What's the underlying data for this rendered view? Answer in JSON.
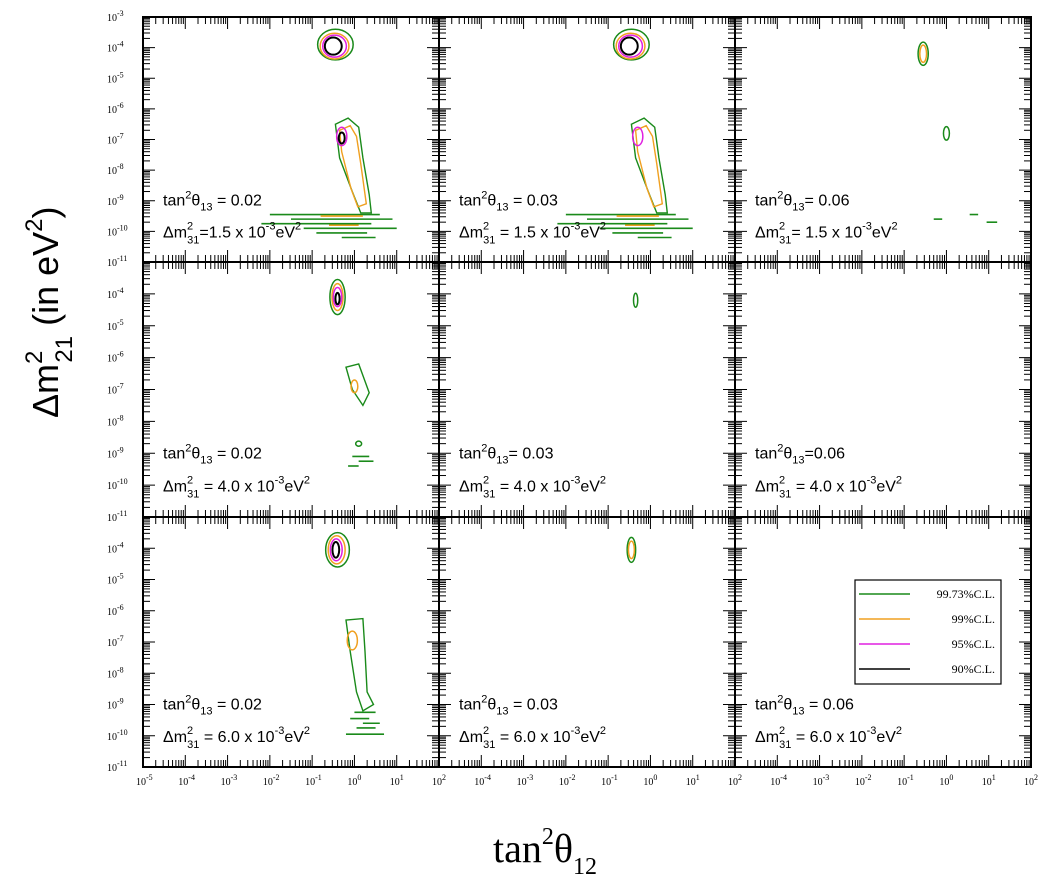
{
  "chart_data": {
    "type": "contour",
    "layout": "3x3 grid of panels sharing axes",
    "x_axis": {
      "title_base": "tan",
      "title_sup": "2",
      "title_symbol": "θ",
      "title_sub": "12",
      "scale": "log",
      "range": [
        1e-05,
        100
      ],
      "ticks": [
        {
          "b": "10",
          "e": "-5"
        },
        {
          "b": "10",
          "e": "-4"
        },
        {
          "b": "10",
          "e": "-3"
        },
        {
          "b": "10",
          "e": "-2"
        },
        {
          "b": "10",
          "e": "-1"
        },
        {
          "b": "10",
          "e": "0"
        },
        {
          "b": "10",
          "e": "1"
        },
        {
          "b": "10",
          "e": "2"
        }
      ]
    },
    "y_axis": {
      "title_prefix": "Δm",
      "title_sup": "2",
      "title_sub": "21",
      "title_suffix": " (in eV",
      "title_suffix_sup": "2",
      "title_close": ")",
      "scale": "log",
      "range": [
        1e-11,
        0.001
      ],
      "ticks": [
        {
          "b": "10",
          "e": "-3"
        },
        {
          "b": "10",
          "e": "-4"
        },
        {
          "b": "10",
          "e": "-5"
        },
        {
          "b": "10",
          "e": "-6"
        },
        {
          "b": "10",
          "e": "-7"
        },
        {
          "b": "10",
          "e": "-8"
        },
        {
          "b": "10",
          "e": "-9"
        },
        {
          "b": "10",
          "e": "-10"
        },
        {
          "b": "10",
          "e": "-11"
        }
      ]
    },
    "legend": {
      "placement": "bottom-right panel, right side",
      "entries": [
        {
          "label": "99.73%C.L.",
          "color": "#1a8a1a"
        },
        {
          "label": "99%C.L.",
          "color": "#f0a020"
        },
        {
          "label": "95%C.L.",
          "color": "#e020e0"
        },
        {
          "label": "90%C.L.",
          "color": "#000000"
        }
      ]
    },
    "series_colors": {
      "cl9973": "#1a8a1a",
      "cl99": "#f0a020",
      "cl95": "#e020e0",
      "cl90": "#000000"
    },
    "panels": [
      {
        "row": 0,
        "col": 0,
        "label1": "tan",
        "label1_sup": "2",
        "label1_sym": "θ",
        "label1_sub": "13",
        "label1_val": " = 0.02",
        "label2": "Δm",
        "label2_sup": "2",
        "label2_sub": "31",
        "label2_val": "=1.5 x 10",
        "label2_exp": "-3",
        "label2_unit": "eV",
        "label2_unit_sup": "2",
        "contours": "large"
      },
      {
        "row": 0,
        "col": 1,
        "label1": "tan",
        "label1_sup": "2",
        "label1_sym": "θ",
        "label1_sub": "13",
        "label1_val": " = 0.03",
        "label2": "Δm",
        "label2_sup": "2",
        "label2_sub": "31",
        "label2_val": " = 1.5 x 10",
        "label2_exp": "-3",
        "label2_unit": "eV",
        "label2_unit_sup": "2",
        "contours": "large"
      },
      {
        "row": 0,
        "col": 2,
        "label1": "tan",
        "label1_sup": "2",
        "label1_sym": "θ",
        "label1_sub": "13",
        "label1_val": "= 0.06",
        "label2": "Δm",
        "label2_sup": "2",
        "label2_sub": "31",
        "label2_val": "= 1.5 x 10",
        "label2_exp": "-3",
        "label2_unit": "eV",
        "label2_unit_sup": "2",
        "contours": "small"
      },
      {
        "row": 1,
        "col": 0,
        "label1": "tan",
        "label1_sup": "2",
        "label1_sym": "θ",
        "label1_sub": "13",
        "label1_val": " = 0.02",
        "label2": "Δm",
        "label2_sup": "2",
        "label2_sub": "31",
        "label2_val": " = 4.0 x 10",
        "label2_exp": "-3",
        "label2_unit": "eV",
        "label2_unit_sup": "2",
        "contours": "medium"
      },
      {
        "row": 1,
        "col": 1,
        "label1": "tan",
        "label1_sup": "2",
        "label1_sym": "θ",
        "label1_sub": "13",
        "label1_val": "= 0.03",
        "label2": "Δm",
        "label2_sup": "2",
        "label2_sub": "31",
        "label2_val": " = 4.0 x 10",
        "label2_exp": "-3",
        "label2_unit": "eV",
        "label2_unit_sup": "2",
        "contours": "tiny"
      },
      {
        "row": 1,
        "col": 2,
        "label1": "tan",
        "label1_sup": "2",
        "label1_sym": "θ",
        "label1_sub": "13",
        "label1_val": "=0.06",
        "label2": "Δm",
        "label2_sup": "2",
        "label2_sub": "31",
        "label2_val": " = 4.0 x 10",
        "label2_exp": "-3",
        "label2_unit": "eV",
        "label2_unit_sup": "2",
        "contours": "none"
      },
      {
        "row": 2,
        "col": 0,
        "label1": "tan",
        "label1_sup": "2",
        "label1_sym": "θ",
        "label1_sub": "13",
        "label1_val": " = 0.02",
        "label2": "Δm",
        "label2_sup": "2",
        "label2_sub": "31",
        "label2_val": " = 6.0 x 10",
        "label2_exp": "-3",
        "label2_unit": "eV",
        "label2_unit_sup": "2",
        "contours": "large2"
      },
      {
        "row": 2,
        "col": 1,
        "label1": "tan",
        "label1_sup": "2",
        "label1_sym": "θ",
        "label1_sub": "13",
        "label1_val": "  = 0.03",
        "label2": "Δm",
        "label2_sup": "2",
        "label2_sub": "31",
        "label2_val": " = 6.0 x 10",
        "label2_exp": "-3",
        "label2_unit": "eV",
        "label2_unit_sup": "2",
        "contours": "single"
      },
      {
        "row": 2,
        "col": 2,
        "label1": "tan",
        "label1_sup": "2",
        "label1_sym": "θ",
        "label1_sub": "13",
        "label1_val": " = 0.06",
        "label2": "Δm",
        "label2_sup": "2",
        "label2_sub": "31",
        "label2_val": " = 6.0 x 10",
        "label2_exp": "-3",
        "label2_unit": "eV",
        "label2_unit_sup": "2",
        "contours": "none"
      }
    ]
  }
}
